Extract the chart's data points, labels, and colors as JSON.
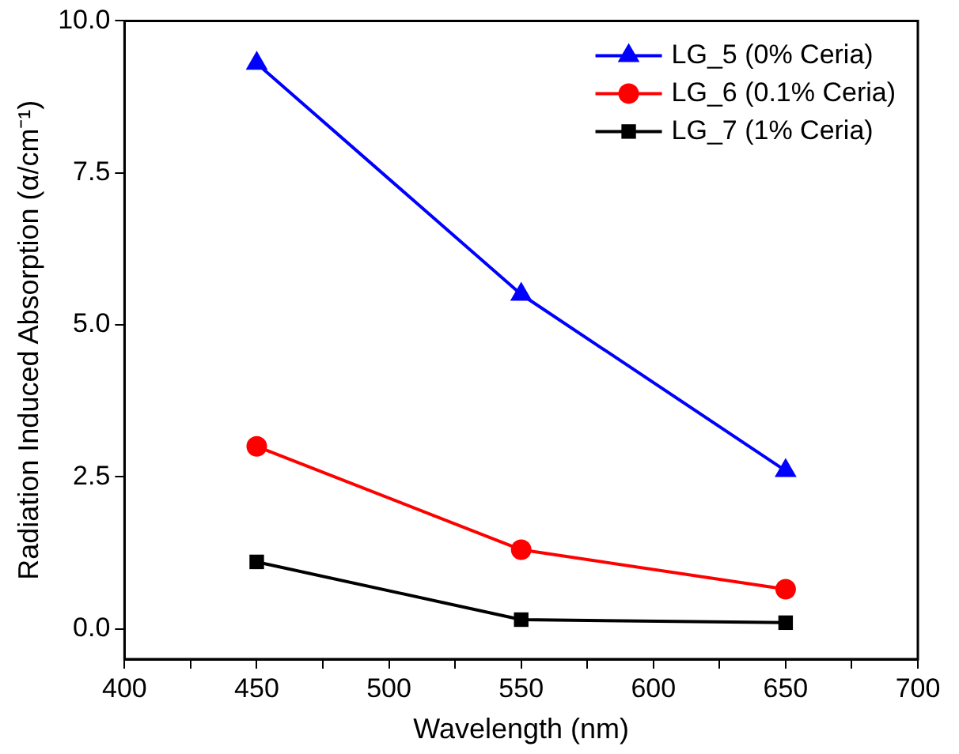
{
  "chart_data": {
    "type": "line",
    "xlabel": "Wavelength (nm)",
    "ylabel": "Radiation Induced Absorption (α/cm⁻¹)",
    "x": [
      450,
      550,
      650
    ],
    "series": [
      {
        "name": "LG_5 (0% Ceria)",
        "color": "#0000ff",
        "marker": "triangle",
        "values": [
          9.3,
          5.5,
          2.6
        ]
      },
      {
        "name": "LG_6 (0.1% Ceria)",
        "color": "#ff0000",
        "marker": "circle",
        "values": [
          3.0,
          1.3,
          0.65
        ]
      },
      {
        "name": "LG_7 (1% Ceria)",
        "color": "#000000",
        "marker": "square",
        "values": [
          1.1,
          0.15,
          0.1
        ]
      }
    ],
    "xlim": [
      400,
      700
    ],
    "xticks": [
      400,
      {
        "value": 425,
        "label": null
      },
      450,
      {
        "value": 475,
        "label": null
      },
      500,
      {
        "value": 525,
        "label": null
      },
      550,
      {
        "value": 575,
        "label": null
      },
      600,
      {
        "value": 625,
        "label": null
      },
      650,
      {
        "value": 675,
        "label": null
      },
      700
    ],
    "ylim": [
      -0.5,
      10
    ],
    "yticks": [
      {
        "value": 0,
        "label": "0.0"
      },
      {
        "value": 2.5,
        "label": "2.5"
      },
      {
        "value": 5,
        "label": "5.0"
      },
      {
        "value": 7.5,
        "label": "7.5"
      },
      {
        "value": 10,
        "label": "10.0"
      }
    ],
    "grid": false,
    "legend": "top right",
    "line_style": "solid"
  }
}
